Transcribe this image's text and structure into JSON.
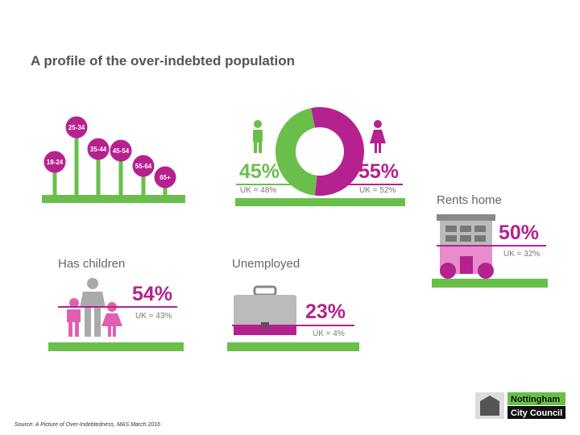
{
  "title": "A profile of the over-indebted population",
  "age_groups": [
    "18-24",
    "25-34",
    "35-44",
    "45-54",
    "55-64",
    "65+"
  ],
  "gender": {
    "male": {
      "value": 45,
      "label": "45%",
      "uk": "UK = 48%"
    },
    "female": {
      "value": 55,
      "label": "55%",
      "uk": "UK = 52%"
    }
  },
  "rents_home": {
    "label": "Rents home",
    "value": "50%",
    "uk": "UK = 32%"
  },
  "has_children": {
    "label": "Has children",
    "value": "54%",
    "uk": "UK = 43%"
  },
  "unemployed": {
    "label": "Unemployed",
    "value": "23%",
    "uk": "UK = 4%"
  },
  "source": "Source: A Picture of Over-Indebtedness, MAS March 2016",
  "logo": {
    "line1": "Nottingham",
    "line2": "City Council"
  }
}
